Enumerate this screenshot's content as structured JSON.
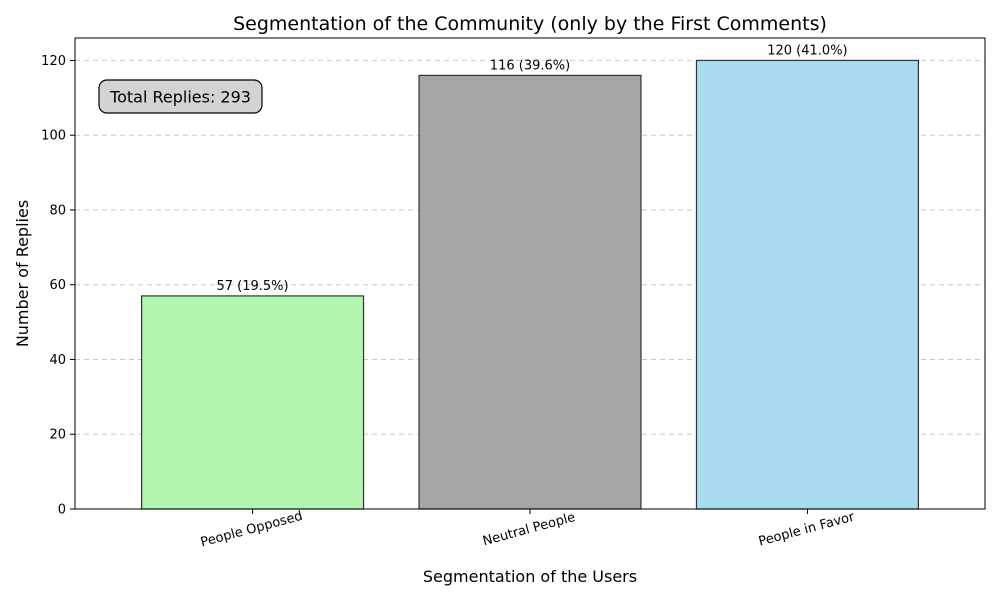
{
  "chart_data": {
    "type": "bar",
    "title": "Segmentation of the Community (only by the First Comments)",
    "xlabel": "Segmentation of the Users",
    "ylabel": "Number of Replies",
    "categories": [
      "People Opposed",
      "Neutral People",
      "People in Favor"
    ],
    "values": [
      57,
      116,
      120
    ],
    "data_labels": [
      "57 (19.5%)",
      "116 (39.6%)",
      "120 (41.0%)"
    ],
    "colors": [
      "#b2f5b0",
      "#a6a6a6",
      "#a8dbed"
    ],
    "edge_color": "#333333",
    "ylim": [
      0,
      126
    ],
    "yticks": [
      0,
      20,
      40,
      60,
      80,
      100,
      120
    ],
    "grid": "y-dashed",
    "annotation": "Total Replies: 293"
  }
}
